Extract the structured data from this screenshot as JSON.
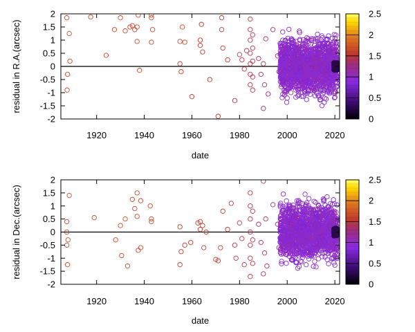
{
  "chart_data": [
    {
      "type": "scatter",
      "title": "",
      "xlabel": "date",
      "ylabel": "residual in R.A.(arcsec)",
      "xlim": [
        1905,
        2022
      ],
      "ylim": [
        -2,
        2
      ],
      "x_ticks": [
        1920,
        1940,
        1960,
        1980,
        2000,
        2020
      ],
      "y_ticks": [
        -2,
        -1.5,
        -1,
        -0.5,
        0,
        0.5,
        1,
        1.5,
        2
      ],
      "x_tick_labels": [
        "1920",
        "1940",
        "1960",
        "1980",
        "2000",
        "2020"
      ],
      "y_tick_labels": [
        "-2",
        "-1.5",
        "-1",
        "-0.5",
        "0",
        "0.5",
        "1",
        "1.5",
        "2"
      ],
      "zero_line": true,
      "grid": false,
      "marker": "open-circle",
      "colorbar": {
        "range": [
          0,
          2.5
        ],
        "ticks": [
          0,
          0.5,
          1,
          1.5,
          2,
          2.5
        ],
        "tick_labels": [
          "0",
          "0.5",
          "1",
          "1.5",
          "2",
          "2.5"
        ],
        "stops": [
          "#000000",
          "#3a0a6e",
          "#8a2be2",
          "#c0392b",
          "#e07a1f",
          "#ffd700",
          "#ffff66"
        ]
      },
      "points": [
        {
          "x": 1907.5,
          "y": 1.85,
          "c": 1.6
        },
        {
          "x": 1908.5,
          "y": 1.25,
          "c": 1.6
        },
        {
          "x": 1908.8,
          "y": 0.2,
          "c": 1.6
        },
        {
          "x": 1907.8,
          "y": -0.3,
          "c": 1.6
        },
        {
          "x": 1907.6,
          "y": -0.9,
          "c": 1.6
        },
        {
          "x": 1917.5,
          "y": 1.88,
          "c": 1.6
        },
        {
          "x": 1924,
          "y": 0.42,
          "c": 1.6
        },
        {
          "x": 1927.5,
          "y": 1.4,
          "c": 1.6
        },
        {
          "x": 1930,
          "y": 1.85,
          "c": 1.6
        },
        {
          "x": 1932,
          "y": 1.35,
          "c": 1.6
        },
        {
          "x": 1934,
          "y": 1.5,
          "c": 1.6
        },
        {
          "x": 1935,
          "y": 1.55,
          "c": 1.6
        },
        {
          "x": 1936,
          "y": 1.4,
          "c": 1.6
        },
        {
          "x": 1937,
          "y": 1.5,
          "c": 1.6
        },
        {
          "x": 1937.5,
          "y": 1.95,
          "c": 1.6
        },
        {
          "x": 1937,
          "y": 0.95,
          "c": 1.6
        },
        {
          "x": 1938,
          "y": -0.15,
          "c": 1.6
        },
        {
          "x": 1943,
          "y": 1.95,
          "c": 1.6
        },
        {
          "x": 1943,
          "y": 1.85,
          "c": 1.6
        },
        {
          "x": 1943.5,
          "y": 1.4,
          "c": 1.6
        },
        {
          "x": 1943,
          "y": 0.92,
          "c": 1.6
        },
        {
          "x": 1955,
          "y": 0.95,
          "c": 1.6
        },
        {
          "x": 1956,
          "y": 1.5,
          "c": 1.6
        },
        {
          "x": 1957,
          "y": 0.92,
          "c": 1.6
        },
        {
          "x": 1955,
          "y": 0.1,
          "c": 1.5
        },
        {
          "x": 1955.5,
          "y": -0.2,
          "c": 1.5
        },
        {
          "x": 1960,
          "y": -1.15,
          "c": 1.5
        },
        {
          "x": 1964,
          "y": 1.6,
          "c": 1.5
        },
        {
          "x": 1963.5,
          "y": 1.0,
          "c": 1.5
        },
        {
          "x": 1963.5,
          "y": 0.8,
          "c": 1.5
        },
        {
          "x": 1964.5,
          "y": 0.55,
          "c": 1.5
        },
        {
          "x": 1967.5,
          "y": -0.5,
          "c": 1.5
        },
        {
          "x": 1971,
          "y": -1.9,
          "c": 1.5
        },
        {
          "x": 1972.5,
          "y": 1.85,
          "c": 1.5
        },
        {
          "x": 1972.5,
          "y": 1.4,
          "c": 1.5
        },
        {
          "x": 1973,
          "y": 0.7,
          "c": 1.5
        },
        {
          "x": 1975,
          "y": 0.25,
          "c": 1.5
        },
        {
          "x": 1978,
          "y": -1.3,
          "c": 1.4
        },
        {
          "x": 1980,
          "y": 0.45,
          "c": 1.4
        },
        {
          "x": 1981,
          "y": 0.25,
          "c": 1.4
        },
        {
          "x": 1982,
          "y": -0.1,
          "c": 1.4
        },
        {
          "x": 1983,
          "y": 0.6,
          "c": 1.4
        },
        {
          "x": 1984.5,
          "y": 1.8,
          "c": 1.4
        },
        {
          "x": 1984.5,
          "y": 1.4,
          "c": 1.4
        },
        {
          "x": 1984.5,
          "y": 1.0,
          "c": 1.4
        },
        {
          "x": 1984.5,
          "y": 0.5,
          "c": 1.4
        },
        {
          "x": 1984.5,
          "y": 0.1,
          "c": 1.4
        },
        {
          "x": 1984.5,
          "y": -0.3,
          "c": 1.4
        },
        {
          "x": 1984.5,
          "y": -0.7,
          "c": 1.4
        },
        {
          "x": 1985.5,
          "y": 1.2,
          "c": 1.4
        },
        {
          "x": 1985.5,
          "y": 0.7,
          "c": 1.4
        },
        {
          "x": 1985.5,
          "y": 0.2,
          "c": 1.4
        },
        {
          "x": 1985.5,
          "y": -0.4,
          "c": 1.4
        },
        {
          "x": 1985.5,
          "y": -0.9,
          "c": 1.4
        },
        {
          "x": 1988,
          "y": 0.3,
          "c": 1.3
        },
        {
          "x": 1989,
          "y": -0.3,
          "c": 1.3
        },
        {
          "x": 1990,
          "y": 0.1,
          "c": 1.3
        },
        {
          "x": 1990.5,
          "y": -0.7,
          "c": 1.3
        },
        {
          "x": 1991,
          "y": 1.05,
          "c": 1.3
        },
        {
          "x": 1992,
          "y": -1.05,
          "c": 1.3
        },
        {
          "x": 1990,
          "y": -1.6,
          "c": 1.3
        },
        {
          "x": 1994,
          "y": 1.4,
          "c": 1.3
        },
        {
          "x": 1996,
          "y": 0.4,
          "c": 1.2
        },
        {
          "x": 1996.5,
          "y": -0.2,
          "c": 1.2
        }
      ],
      "dense_clusters": [
        {
          "x_range": [
            1997,
            2021
          ],
          "y_center": 0.0,
          "y_spread": 1.9,
          "count": 1600,
          "c": 0.95
        }
      ]
    },
    {
      "type": "scatter",
      "title": "",
      "xlabel": "date",
      "ylabel": "residual in Dec.(arcsec)",
      "xlim": [
        1905,
        2022
      ],
      "ylim": [
        -2,
        2
      ],
      "x_ticks": [
        1920,
        1940,
        1960,
        1980,
        2000,
        2020
      ],
      "y_ticks": [
        -2,
        -1.5,
        -1,
        -0.5,
        0,
        0.5,
        1,
        1.5,
        2
      ],
      "x_tick_labels": [
        "1920",
        "1940",
        "1960",
        "1980",
        "2000",
        "2020"
      ],
      "y_tick_labels": [
        "-2",
        "-1.5",
        "-1",
        "-0.5",
        "0",
        "0.5",
        "1",
        "1.5",
        "2"
      ],
      "zero_line": true,
      "grid": false,
      "marker": "open-circle",
      "colorbar": {
        "range": [
          0,
          2.5
        ],
        "ticks": [
          0,
          0.5,
          1,
          1.5,
          2,
          2.5
        ],
        "tick_labels": [
          "0",
          "0.5",
          "1",
          "1.5",
          "2",
          "2.5"
        ],
        "stops": [
          "#000000",
          "#3a0a6e",
          "#8a2be2",
          "#c0392b",
          "#e07a1f",
          "#ffd700",
          "#ffff66"
        ]
      },
      "points": [
        {
          "x": 1908.5,
          "y": 1.4,
          "c": 1.6
        },
        {
          "x": 1907.5,
          "y": 0.4,
          "c": 1.6
        },
        {
          "x": 1907.5,
          "y": 0.0,
          "c": 1.6
        },
        {
          "x": 1908,
          "y": -0.3,
          "c": 1.6
        },
        {
          "x": 1907.5,
          "y": -0.5,
          "c": 1.6
        },
        {
          "x": 1907.8,
          "y": -1.25,
          "c": 1.6
        },
        {
          "x": 1919,
          "y": 0.55,
          "c": 1.6
        },
        {
          "x": 1928,
          "y": -0.3,
          "c": 1.6
        },
        {
          "x": 1930,
          "y": 0.25,
          "c": 1.6
        },
        {
          "x": 1930.5,
          "y": -0.9,
          "c": 1.6
        },
        {
          "x": 1932,
          "y": 0.5,
          "c": 1.6
        },
        {
          "x": 1933,
          "y": -1.3,
          "c": 1.6
        },
        {
          "x": 1935,
          "y": 1.25,
          "c": 1.6
        },
        {
          "x": 1936,
          "y": 0.9,
          "c": 1.6
        },
        {
          "x": 1937,
          "y": 1.5,
          "c": 1.6
        },
        {
          "x": 1937,
          "y": 0.6,
          "c": 1.6
        },
        {
          "x": 1937.5,
          "y": -0.7,
          "c": 1.6
        },
        {
          "x": 1938.5,
          "y": -0.6,
          "c": 1.6
        },
        {
          "x": 1938.5,
          "y": 1.2,
          "c": 1.6
        },
        {
          "x": 1942.5,
          "y": 1.0,
          "c": 1.6
        },
        {
          "x": 1943,
          "y": 0.5,
          "c": 1.6
        },
        {
          "x": 1943,
          "y": 0.4,
          "c": 1.6
        },
        {
          "x": 1955,
          "y": 0.2,
          "c": 1.5
        },
        {
          "x": 1955.5,
          "y": -0.75,
          "c": 1.5
        },
        {
          "x": 1955,
          "y": -1.25,
          "c": 1.5
        },
        {
          "x": 1957,
          "y": -0.5,
          "c": 1.5
        },
        {
          "x": 1959.5,
          "y": -0.4,
          "c": 1.5
        },
        {
          "x": 1962.5,
          "y": 0.35,
          "c": 1.5
        },
        {
          "x": 1963.5,
          "y": 0.1,
          "c": 1.5
        },
        {
          "x": 1963.5,
          "y": 0.4,
          "c": 1.5
        },
        {
          "x": 1964.5,
          "y": 0.25,
          "c": 1.5
        },
        {
          "x": 1965,
          "y": -0.6,
          "c": 1.5
        },
        {
          "x": 1966,
          "y": 0.0,
          "c": 1.5
        },
        {
          "x": 1970,
          "y": -1.05,
          "c": 1.5
        },
        {
          "x": 1971,
          "y": -1.1,
          "c": 1.5
        },
        {
          "x": 1972,
          "y": -0.6,
          "c": 1.5
        },
        {
          "x": 1973,
          "y": 0.8,
          "c": 1.5
        },
        {
          "x": 1975,
          "y": 0.1,
          "c": 1.5
        },
        {
          "x": 1976.5,
          "y": 1.1,
          "c": 1.4
        },
        {
          "x": 1978,
          "y": -0.5,
          "c": 1.4
        },
        {
          "x": 1978.5,
          "y": -1.0,
          "c": 1.4
        },
        {
          "x": 1980,
          "y": 0.35,
          "c": 1.4
        },
        {
          "x": 1981,
          "y": -0.25,
          "c": 1.4
        },
        {
          "x": 1982,
          "y": -1.25,
          "c": 1.4
        },
        {
          "x": 1984.5,
          "y": 1.5,
          "c": 1.4
        },
        {
          "x": 1984.5,
          "y": 1.0,
          "c": 1.4
        },
        {
          "x": 1984.5,
          "y": 0.5,
          "c": 1.4
        },
        {
          "x": 1984.5,
          "y": 0.0,
          "c": 1.4
        },
        {
          "x": 1984.5,
          "y": -0.5,
          "c": 1.4
        },
        {
          "x": 1984.5,
          "y": -1.0,
          "c": 1.4
        },
        {
          "x": 1984.5,
          "y": -1.7,
          "c": 1.4
        },
        {
          "x": 1985.5,
          "y": 0.8,
          "c": 1.4
        },
        {
          "x": 1985.5,
          "y": -0.3,
          "c": 1.4
        },
        {
          "x": 1985.5,
          "y": -1.2,
          "c": 1.4
        },
        {
          "x": 1988,
          "y": 0.3,
          "c": 1.3
        },
        {
          "x": 1989,
          "y": -0.4,
          "c": 1.3
        },
        {
          "x": 1990,
          "y": 1.95,
          "c": 1.3
        },
        {
          "x": 1990.5,
          "y": -0.8,
          "c": 1.3
        },
        {
          "x": 1991,
          "y": 0.5,
          "c": 1.3
        },
        {
          "x": 1991.5,
          "y": -1.3,
          "c": 1.3
        },
        {
          "x": 1990,
          "y": -1.6,
          "c": 1.3
        },
        {
          "x": 1994,
          "y": 1.05,
          "c": 1.3
        },
        {
          "x": 1996,
          "y": 0.3,
          "c": 1.2
        },
        {
          "x": 1996.5,
          "y": -0.6,
          "c": 1.2
        }
      ],
      "dense_clusters": [
        {
          "x_range": [
            1997,
            2021
          ],
          "y_center": 0.0,
          "y_spread": 1.9,
          "count": 1600,
          "c": 0.95
        }
      ]
    }
  ]
}
